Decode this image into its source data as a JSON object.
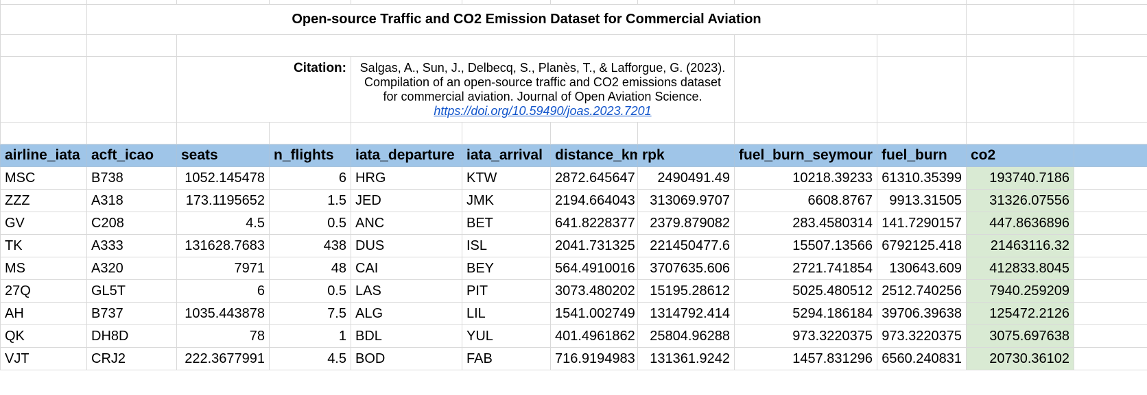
{
  "title": "Open-source Traffic and CO2 Emission Dataset for Commercial Aviation",
  "citation": {
    "label": "Citation:",
    "text": "Salgas, A., Sun, J., Delbecq, S., Planès, T., & Lafforgue, G. (2023). Compilation of an open-source traffic and CO2 emissions dataset for commercial aviation. Journal of Open Aviation Science.",
    "link": "https://doi.org/10.59490/joas.2023.7201"
  },
  "columns": [
    "airline_iata",
    "acft_icao",
    "seats",
    "n_flights",
    "iata_departure",
    "iata_arrival",
    "distance_km",
    "rpk",
    "fuel_burn_seymour",
    "fuel_burn",
    "co2"
  ],
  "rows": [
    [
      "MSC",
      "B738",
      "1052.145478",
      "6",
      "HRG",
      "KTW",
      "2872.645647",
      "2490491.49",
      "10218.39233",
      "61310.35399",
      "193740.7186"
    ],
    [
      "ZZZ",
      "A318",
      "173.1195652",
      "1.5",
      "JED",
      "JMK",
      "2194.664043",
      "313069.9707",
      "6608.8767",
      "9913.31505",
      "31326.07556"
    ],
    [
      "GV",
      "C208",
      "4.5",
      "0.5",
      "ANC",
      "BET",
      "641.8228377",
      "2379.879082",
      "283.4580314",
      "141.7290157",
      "447.8636896"
    ],
    [
      "TK",
      "A333",
      "131628.7683",
      "438",
      "DUS",
      "ISL",
      "2041.731325",
      "221450477.6",
      "15507.13566",
      "6792125.418",
      "21463116.32"
    ],
    [
      "MS",
      "A320",
      "7971",
      "48",
      "CAI",
      "BEY",
      "564.4910016",
      "3707635.606",
      "2721.741854",
      "130643.609",
      "412833.8045"
    ],
    [
      "27Q",
      "GL5T",
      "6",
      "0.5",
      "LAS",
      "PIT",
      "3073.480202",
      "15195.28612",
      "5025.480512",
      "2512.740256",
      "7940.259209"
    ],
    [
      "AH",
      "B737",
      "1035.443878",
      "7.5",
      "ALG",
      "LIL",
      "1541.002749",
      "1314792.414",
      "5294.186184",
      "39706.39638",
      "125472.2126"
    ],
    [
      "QK",
      "DH8D",
      "78",
      "1",
      "BDL",
      "YUL",
      "401.4961862",
      "25804.96288",
      "973.3220375",
      "973.3220375",
      "3075.697638"
    ],
    [
      "VJT",
      "CRJ2",
      "222.3677991",
      "4.5",
      "BOD",
      "FAB",
      "716.9194983",
      "131361.9242",
      "1457.831296",
      "6560.240831",
      "20730.36102"
    ]
  ]
}
